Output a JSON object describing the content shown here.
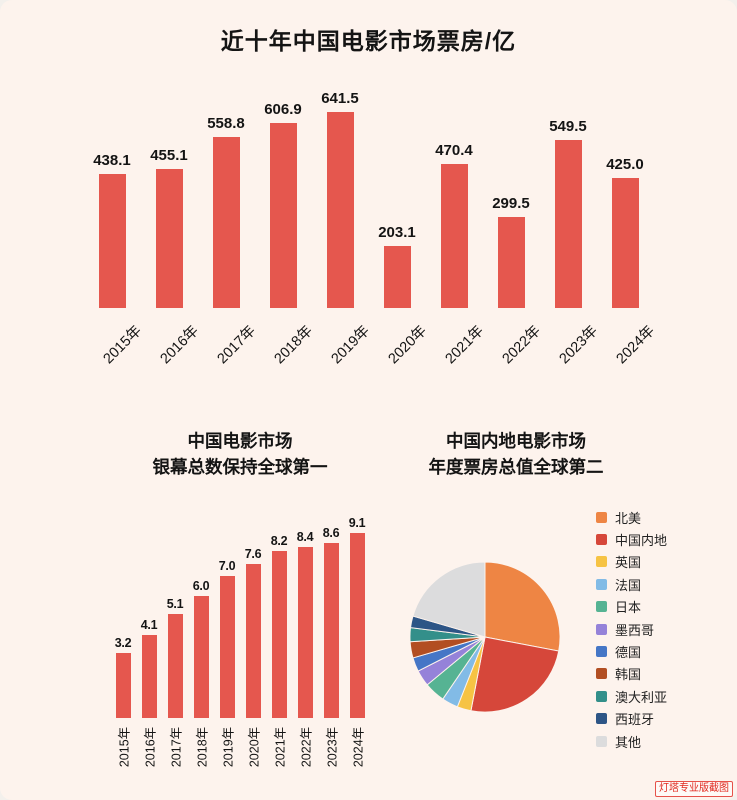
{
  "page": {
    "background": "#fdf3ed"
  },
  "watermark": {
    "text": "灯塔专业版截图",
    "color": "#e0281e"
  },
  "chart_data": [
    {
      "type": "bar",
      "title": "近十年中国电影市场票房/亿",
      "categories": [
        "2015年",
        "2016年",
        "2017年",
        "2018年",
        "2019年",
        "2020年",
        "2021年",
        "2022年",
        "2023年",
        "2024年"
      ],
      "values": [
        438.1,
        455.1,
        558.8,
        606.9,
        641.5,
        203.1,
        470.4,
        299.5,
        549.5,
        425.0
      ],
      "bar_color": "#e5574e",
      "value_labels_shown": true,
      "xlabel": "",
      "ylabel": "",
      "ylim": [
        0,
        700
      ],
      "grid": false,
      "unit": "亿"
    },
    {
      "type": "bar",
      "title": "中国电影市场 银幕总数保持全球第一",
      "title_line1": "中国电影市场",
      "title_line2": "银幕总数保持全球第一",
      "categories": [
        "2015年",
        "2016年",
        "2017年",
        "2018年",
        "2019年",
        "2020年",
        "2021年",
        "2022年",
        "2023年",
        "2024年"
      ],
      "values": [
        3.2,
        4.1,
        5.1,
        6.0,
        7.0,
        7.6,
        8.2,
        8.4,
        8.6,
        9.1
      ],
      "bar_color": "#e5574e",
      "value_labels_shown": true,
      "xlabel": "",
      "ylabel": "",
      "ylim": [
        0,
        10
      ],
      "grid": false
    },
    {
      "type": "pie",
      "title": "中国内地电影市场 年度票房总值全球第二",
      "title_line1": "中国内地电影市场",
      "title_line2": "年度票房总值全球第二",
      "legend_position": "right",
      "note": "slice values are estimated percent of circle read from the figure",
      "slices": [
        {
          "label": "北美",
          "value": 28,
          "color": "#ee8544"
        },
        {
          "label": "中国内地",
          "value": 25,
          "color": "#d6473a"
        },
        {
          "label": "英国",
          "value": 3,
          "color": "#f6c344"
        },
        {
          "label": "法国",
          "value": 3.5,
          "color": "#82bbe6"
        },
        {
          "label": "日本",
          "value": 4.5,
          "color": "#56b393"
        },
        {
          "label": "墨西哥",
          "value": 3.5,
          "color": "#9582d9"
        },
        {
          "label": "德国",
          "value": 3,
          "color": "#4576c6"
        },
        {
          "label": "韩国",
          "value": 3.5,
          "color": "#b24e22"
        },
        {
          "label": "澳大利亚",
          "value": 3,
          "color": "#338f8a"
        },
        {
          "label": "西班牙",
          "value": 2.5,
          "color": "#2d5586"
        },
        {
          "label": "其他",
          "value": 20.5,
          "color": "#dcdcdd"
        }
      ]
    }
  ]
}
